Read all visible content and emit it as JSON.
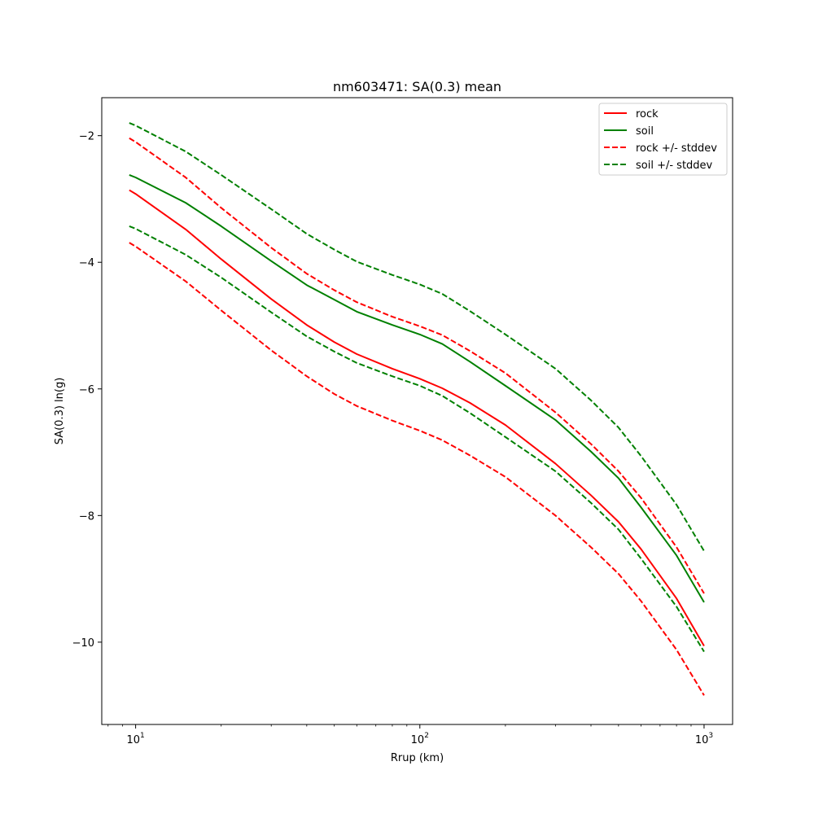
{
  "chart_data": {
    "type": "line",
    "title": "nm603471: SA(0.3) mean",
    "xlabel": "Rrup (km)",
    "ylabel": "SA(0.3) ln(g)",
    "xscale": "log",
    "xlim": [
      7.6,
      1260
    ],
    "ylim": [
      -11.3,
      -1.4
    ],
    "grid": false,
    "legend_position": "top-right",
    "x_ticks": [
      {
        "value": 10,
        "base": "10",
        "exp": "1"
      },
      {
        "value": 100,
        "base": "10",
        "exp": "2"
      },
      {
        "value": 1000,
        "base": "10",
        "exp": "3"
      }
    ],
    "y_ticks": [
      {
        "value": -2,
        "label": "−2"
      },
      {
        "value": -4,
        "label": "−4"
      },
      {
        "value": -6,
        "label": "−6"
      },
      {
        "value": -8,
        "label": "−8"
      },
      {
        "value": -10,
        "label": "−10"
      }
    ],
    "x": [
      9.5,
      10,
      15,
      20,
      30,
      40,
      50,
      60,
      80,
      100,
      120,
      150,
      200,
      300,
      400,
      500,
      600,
      800,
      1000
    ],
    "series": [
      {
        "name": "rock",
        "color": "#ff0000",
        "dash": "solid",
        "values": [
          -2.86,
          -2.92,
          -3.48,
          -3.95,
          -4.58,
          -4.99,
          -5.26,
          -5.45,
          -5.68,
          -5.84,
          -5.99,
          -6.22,
          -6.57,
          -7.18,
          -7.68,
          -8.1,
          -8.53,
          -9.31,
          -10.06
        ]
      },
      {
        "name": "soil",
        "color": "#008000",
        "dash": "solid",
        "values": [
          -2.62,
          -2.66,
          -3.06,
          -3.43,
          -3.98,
          -4.36,
          -4.59,
          -4.78,
          -4.99,
          -5.14,
          -5.29,
          -5.57,
          -5.95,
          -6.49,
          -6.99,
          -7.41,
          -7.87,
          -8.63,
          -9.37
        ]
      },
      {
        "name": "rock +/- stddev",
        "color": "#ff0000",
        "dash": "dashed",
        "values": [
          -2.04,
          -2.1,
          -2.66,
          -3.14,
          -3.77,
          -4.18,
          -4.44,
          -4.63,
          -4.86,
          -5.01,
          -5.15,
          -5.4,
          -5.75,
          -6.37,
          -6.87,
          -7.3,
          -7.72,
          -8.5,
          -9.23
        ]
      },
      {
        "name": "",
        "color": "#ff0000",
        "dash": "dashed",
        "values": [
          -3.69,
          -3.75,
          -4.3,
          -4.76,
          -5.39,
          -5.8,
          -6.08,
          -6.27,
          -6.5,
          -6.66,
          -6.81,
          -7.05,
          -7.39,
          -8.0,
          -8.5,
          -8.92,
          -9.35,
          -10.12,
          -10.84
        ]
      },
      {
        "name": "soil +/- stddev",
        "color": "#008000",
        "dash": "dashed",
        "values": [
          -1.8,
          -1.84,
          -2.25,
          -2.62,
          -3.16,
          -3.55,
          -3.8,
          -3.99,
          -4.2,
          -4.35,
          -4.5,
          -4.77,
          -5.14,
          -5.68,
          -6.18,
          -6.61,
          -7.06,
          -7.83,
          -8.56
        ]
      },
      {
        "name": "",
        "color": "#008000",
        "dash": "dashed",
        "values": [
          -3.43,
          -3.47,
          -3.88,
          -4.24,
          -4.79,
          -5.17,
          -5.41,
          -5.59,
          -5.8,
          -5.95,
          -6.11,
          -6.38,
          -6.76,
          -7.3,
          -7.8,
          -8.22,
          -8.68,
          -9.44,
          -10.15
        ]
      }
    ]
  }
}
